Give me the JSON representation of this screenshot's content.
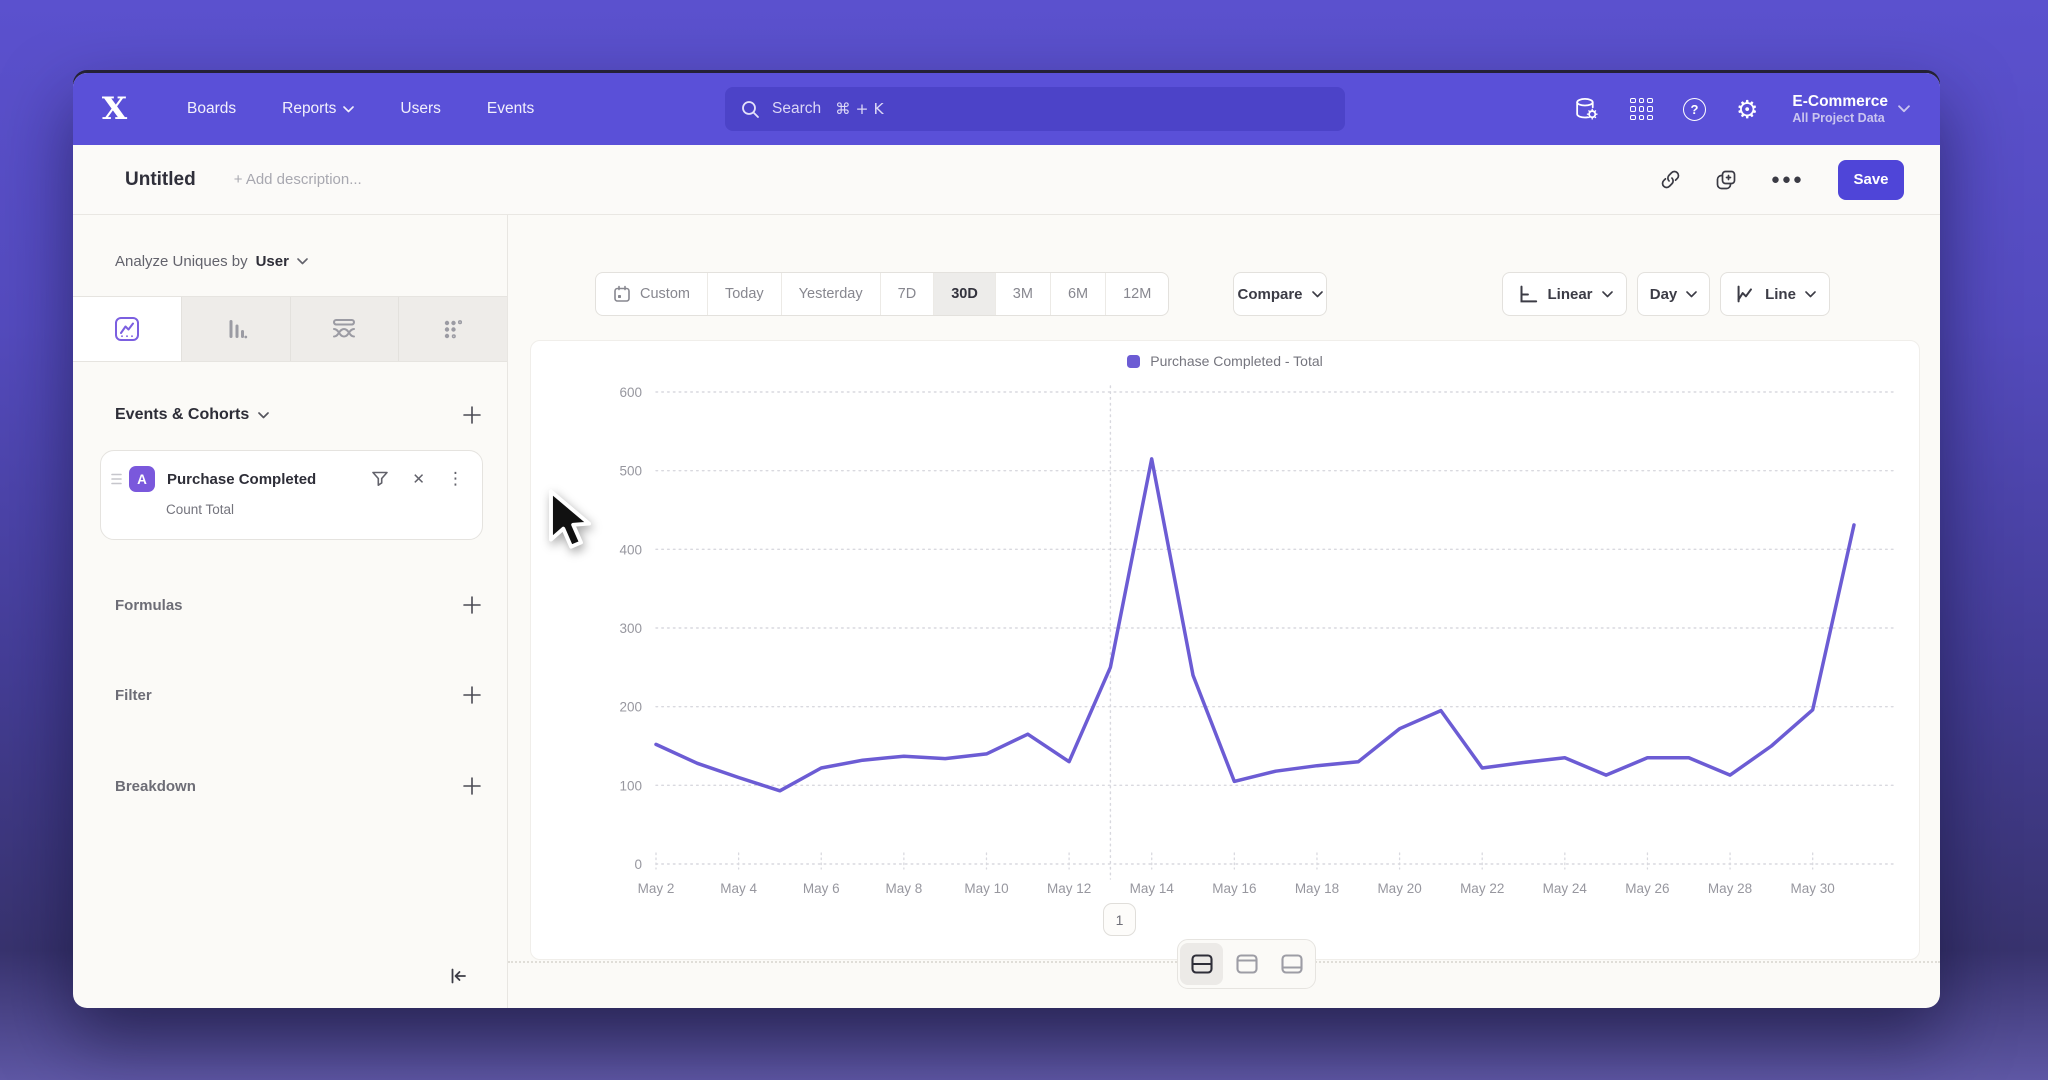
{
  "nav": {
    "items": [
      {
        "label": "Boards"
      },
      {
        "label": "Reports"
      },
      {
        "label": "Users"
      },
      {
        "label": "Events"
      }
    ],
    "search": {
      "placeholder": "Search",
      "shortcut": "⌘ + K"
    },
    "org": {
      "name": "E-Commerce",
      "subtitle": "All Project Data"
    }
  },
  "action_bar": {
    "title": "Untitled",
    "description_placeholder": "+ Add description...",
    "save_label": "Save"
  },
  "sidebar": {
    "analyze": {
      "prefix": "Analyze Uniques by",
      "value": "User"
    },
    "events_header": {
      "label": "Events & Cohorts"
    },
    "event_card": {
      "badge": "A",
      "name": "Purchase Completed",
      "metric": "Count Total"
    },
    "sections": [
      {
        "label": "Formulas"
      },
      {
        "label": "Filter"
      },
      {
        "label": "Breakdown"
      }
    ]
  },
  "toolbar": {
    "date_ranges": [
      {
        "label": "Custom"
      },
      {
        "label": "Today"
      },
      {
        "label": "Yesterday"
      },
      {
        "label": "7D"
      },
      {
        "label": "30D",
        "selected": true
      },
      {
        "label": "3M"
      },
      {
        "label": "6M"
      },
      {
        "label": "12M"
      }
    ],
    "compare_label": "Compare",
    "scale_label": "Linear",
    "granularity_label": "Day",
    "chart_type_label": "Line"
  },
  "chart_data": {
    "type": "line",
    "legend": "Purchase Completed - Total",
    "ylim": [
      0,
      600
    ],
    "yticks": [
      0,
      100,
      200,
      300,
      400,
      500,
      600
    ],
    "x_label_every": 2,
    "grid": "dotted-horizontal",
    "legend_position": "top-center",
    "vertical_marker_x": "May 13",
    "series": [
      {
        "name": "Purchase Completed - Total",
        "color": "#6c5cd4",
        "x": [
          "May 2",
          "May 3",
          "May 4",
          "May 5",
          "May 6",
          "May 7",
          "May 8",
          "May 9",
          "May 10",
          "May 11",
          "May 12",
          "May 13",
          "May 14",
          "May 15",
          "May 16",
          "May 17",
          "May 18",
          "May 19",
          "May 20",
          "May 21",
          "May 22",
          "May 23",
          "May 24",
          "May 25",
          "May 26",
          "May 27",
          "May 28",
          "May 29",
          "May 30",
          "May 31"
        ],
        "values": [
          152,
          128,
          110,
          93,
          122,
          132,
          137,
          134,
          140,
          165,
          130,
          250,
          515,
          240,
          105,
          118,
          125,
          130,
          172,
          195,
          122,
          129,
          135,
          113,
          135,
          135,
          113,
          150,
          196,
          431
        ]
      }
    ]
  },
  "footer": {
    "page": "1"
  },
  "colors": {
    "nav-bg": "#5a50d8",
    "search-bg": "#4c43c8",
    "accent": "#7b5fe0",
    "save-bg": "#4f45d8",
    "line-color": "#6c5cd4",
    "badge-bg": "#7a58dc",
    "app-bg": "#fbfaf7"
  }
}
